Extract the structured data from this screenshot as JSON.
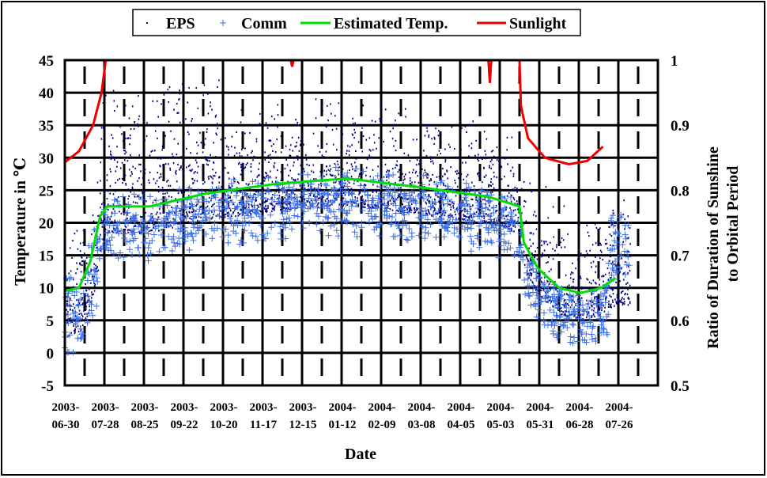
{
  "chart_data": {
    "type": "scatter",
    "title": "",
    "xlabel": "Date",
    "ylabel": "Temperature in ℃",
    "y2label_line1": "Ratio of Duration of Sunshine",
    "y2label_line2": "to Orbital Period",
    "ylim": [
      -5,
      45
    ],
    "y2lim": [
      0.5,
      1
    ],
    "yticks": [
      "45",
      "40",
      "35",
      "30",
      "25",
      "20",
      "15",
      "10",
      "5",
      "0",
      "-5"
    ],
    "y2ticks": [
      "1",
      "0.9",
      "0.8",
      "0.7",
      "0.6",
      "0.5"
    ],
    "x_start": "2003-06-30",
    "x_range_days": [
      0,
      420
    ],
    "x_tick_interval_days": 28,
    "xticks": [
      [
        "2003-",
        "06-30"
      ],
      [
        "2003-",
        "07-28"
      ],
      [
        "2003-",
        "08-25"
      ],
      [
        "2003-",
        "09-22"
      ],
      [
        "2003-",
        "10-20"
      ],
      [
        "2003-",
        "11-17"
      ],
      [
        "2003-",
        "12-15"
      ],
      [
        "2004-",
        "01-12"
      ],
      [
        "2004-",
        "02-09"
      ],
      [
        "2004-",
        "03-08"
      ],
      [
        "2004-",
        "04-05"
      ],
      [
        "2004-",
        "05-03"
      ],
      [
        "2004-",
        "05-31"
      ],
      [
        "2004-",
        "06-28"
      ],
      [
        "2004-",
        "07-26"
      ]
    ],
    "grid": true,
    "legend_position": "top",
    "legend": [
      "EPS",
      "Comm",
      "Estimated Temp.",
      "Sunlight"
    ],
    "colors": {
      "eps": "#000080",
      "comm": "#3a6ee8",
      "estimated": "#00dd00",
      "sunlight": "#ee0000"
    },
    "series": [
      {
        "name": "Estimated Temp.",
        "axis": "left",
        "x_days": [
          0,
          10,
          18,
          25,
          30,
          60,
          100,
          150,
          200,
          250,
          300,
          322,
          325,
          335,
          350,
          365,
          380,
          390
        ],
        "values": [
          9.5,
          10,
          14,
          21,
          22.5,
          22.5,
          24.5,
          26,
          26.8,
          25.5,
          24,
          22.5,
          17,
          13,
          10,
          9.2,
          10,
          11.5
        ]
      },
      {
        "name": "Sunlight",
        "axis": "right",
        "x_days": [
          0,
          10,
          20,
          26,
          29,
          160,
          161,
          162,
          300,
          301,
          302,
          322,
          323,
          328,
          340,
          357,
          370,
          381
        ],
        "values": [
          0.843,
          0.86,
          0.9,
          0.95,
          1,
          1,
          0.99,
          1,
          1,
          0.965,
          1,
          1,
          0.93,
          0.88,
          0.85,
          0.84,
          0.845,
          0.867
        ]
      },
      {
        "name": "EPS",
        "axis": "left",
        "description": "dense dot scatter, typically 0-15 above estimated temp, spanning days 0-400"
      },
      {
        "name": "Comm",
        "axis": "left",
        "description": "plus-marker scatter, around estimated temp minus 0-8, spanning days 0-400"
      }
    ]
  }
}
